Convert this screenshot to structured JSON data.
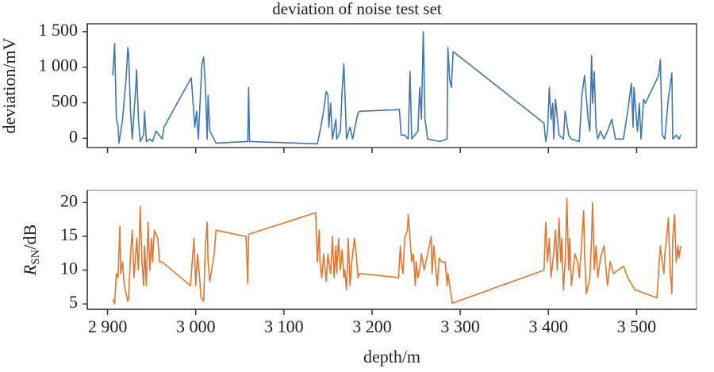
{
  "chart_data": [
    {
      "type": "line",
      "title": "deviation of noise test set",
      "y_label": "deviation/mV",
      "color": "#3f76b0",
      "xlim": [
        2877,
        3568
      ],
      "xticks": [
        {
          "value": 2900,
          "label": "2 900"
        },
        {
          "value": 3000,
          "label": "3 000"
        },
        {
          "value": 3100,
          "label": "3 100"
        },
        {
          "value": 3200,
          "label": "3 200"
        },
        {
          "value": 3300,
          "label": "3 300"
        },
        {
          "value": 3400,
          "label": "3 400"
        },
        {
          "value": 3500,
          "label": "3 500"
        }
      ],
      "ylim": [
        -130,
        1610
      ],
      "yticks": [
        {
          "value": 1500,
          "label": "1 500"
        },
        {
          "value": 1000,
          "label": "1 000"
        },
        500,
        0
      ],
      "x": [
        2906,
        2908,
        2910,
        2912,
        2913,
        2917,
        2921,
        2923,
        2924,
        2926,
        2928,
        2932,
        2933,
        2935,
        2937,
        2941,
        2942,
        2944,
        2948,
        2951,
        2955,
        2962,
        2964,
        2995,
        2999,
        3001,
        3003,
        3007,
        3009,
        3011,
        3013,
        3014,
        3016,
        3023,
        3059,
        3060,
        3061,
        3138,
        3141,
        3145,
        3148,
        3150,
        3151,
        3153,
        3155,
        3159,
        3160,
        3164,
        3166,
        3168,
        3170,
        3171,
        3175,
        3178,
        3184,
        3186,
        3231,
        3233,
        3237,
        3241,
        3243,
        3245,
        3252,
        3254,
        3256,
        3258,
        3260,
        3263,
        3277,
        3285,
        3286,
        3288,
        3290,
        3292,
        3395,
        3397,
        3399,
        3401,
        3403,
        3405,
        3406,
        3408,
        3412,
        3417,
        3419,
        3423,
        3426,
        3435,
        3438,
        3441,
        3445,
        3447,
        3449,
        3450,
        3452,
        3454,
        3456,
        3459,
        3463,
        3467,
        3472,
        3476,
        3485,
        3490,
        3494,
        3496,
        3497,
        3501,
        3503,
        3505,
        3508,
        3510,
        3525,
        3527,
        3529,
        3532,
        3536,
        3540,
        3541,
        3545,
        3548,
        3550
      ],
      "values": [
        884,
        1332,
        269,
        157,
        -67,
        269,
        828,
        1276,
        1164,
        380,
        -11,
        716,
        962,
        269,
        -45,
        45,
        380,
        -45,
        -11,
        -45,
        101,
        -11,
        157,
        850,
        157,
        380,
        -11,
        1052,
        1141,
        716,
        -11,
        604,
        101,
        -67,
        -45,
        716,
        -45,
        -78,
        101,
        380,
        660,
        604,
        157,
        492,
        -11,
        269,
        -11,
        101,
        660,
        1052,
        380,
        -11,
        157,
        -11,
        358,
        380,
        403,
        45,
        45,
        -11,
        940,
        -11,
        101,
        716,
        269,
        1500,
        269,
        -11,
        -45,
        -11,
        1276,
        828,
        716,
        1220,
        213,
        -45,
        101,
        716,
        269,
        492,
        -11,
        548,
        45,
        -11,
        380,
        45,
        -11,
        -45,
        604,
        884,
        269,
        101,
        1164,
        492,
        940,
        157,
        -11,
        101,
        -11,
        101,
        269,
        -11,
        -11,
        380,
        772,
        157,
        716,
        101,
        492,
        -11,
        548,
        492,
        884,
        1108,
        45,
        -11,
        548,
        918,
        -11,
        45,
        -11,
        45
      ]
    },
    {
      "type": "line",
      "x_label": "depth/m",
      "y_label": {
        "symbol": "R",
        "subscript": "SN",
        "unit": "/dB"
      },
      "color": "#e5752c",
      "xlim": [
        2877,
        3568
      ],
      "xticks": [
        {
          "value": 2900,
          "label": "2 900"
        },
        {
          "value": 3000,
          "label": "3 000"
        },
        {
          "value": 3100,
          "label": "3 100"
        },
        {
          "value": 3200,
          "label": "3 200"
        },
        {
          "value": 3300,
          "label": "3 300"
        },
        {
          "value": 3400,
          "label": "3 400"
        },
        {
          "value": 3500,
          "label": "3 500"
        }
      ],
      "ylim": [
        4.2,
        21.8
      ],
      "yticks": [
        5,
        10,
        15,
        20
      ],
      "x": [
        2906,
        2908,
        2910,
        2912,
        2914,
        2915,
        2917,
        2919,
        2923,
        2924,
        2926,
        2928,
        2930,
        2932,
        2933,
        2935,
        2937,
        2939,
        2941,
        2942,
        2944,
        2946,
        2948,
        2950,
        2951,
        2953,
        2957,
        2959,
        2962,
        2994,
        2996,
        2998,
        3000,
        3002,
        3004,
        3006,
        3009,
        3011,
        3013,
        3014,
        3016,
        3018,
        3021,
        3023,
        3057,
        3059,
        3060,
        3136,
        3138,
        3140,
        3141,
        3143,
        3145,
        3148,
        3150,
        3151,
        3153,
        3155,
        3157,
        3159,
        3160,
        3162,
        3164,
        3166,
        3168,
        3169,
        3171,
        3173,
        3175,
        3177,
        3180,
        3182,
        3184,
        3186,
        3230,
        3232,
        3233,
        3235,
        3237,
        3240,
        3241,
        3243,
        3245,
        3247,
        3249,
        3250,
        3252,
        3254,
        3256,
        3259,
        3263,
        3267,
        3268,
        3270,
        3274,
        3276,
        3279,
        3283,
        3285,
        3286,
        3291,
        3395,
        3397,
        3399,
        3401,
        3403,
        3406,
        3408,
        3410,
        3412,
        3414,
        3415,
        3417,
        3419,
        3421,
        3423,
        3424,
        3426,
        3430,
        3433,
        3435,
        3438,
        3440,
        3441,
        3443,
        3447,
        3449,
        3450,
        3452,
        3454,
        3456,
        3459,
        3463,
        3467,
        3470,
        3474,
        3479,
        3485,
        3490,
        3498,
        3523,
        3527,
        3529,
        3531,
        3532,
        3534,
        3536,
        3538,
        3540,
        3541,
        3543,
        3545,
        3547,
        3548,
        3550
      ],
      "values": [
        5.7,
        5.0,
        9.5,
        8.9,
        16.5,
        9.5,
        11.2,
        7.7,
        5.4,
        5.9,
        12.4,
        15.9,
        8.9,
        12.4,
        14.7,
        10.0,
        19.4,
        11.2,
        7.7,
        13.6,
        7.7,
        17.1,
        10.0,
        14.7,
        11.2,
        15.9,
        14.7,
        11.2,
        11.2,
        7.7,
        11.2,
        14.7,
        7.7,
        12.4,
        9.5,
        5.9,
        5.4,
        13.6,
        17.1,
        11.2,
        8.3,
        10.0,
        12.4,
        15.9,
        15.0,
        8.0,
        15.3,
        18.5,
        11.2,
        15.9,
        11.2,
        8.9,
        12.4,
        8.3,
        12.4,
        11.2,
        9.5,
        15.0,
        8.9,
        13.6,
        9.5,
        14.7,
        10.0,
        13.0,
        8.9,
        10.0,
        7.1,
        14.7,
        7.7,
        11.2,
        14.7,
        12.4,
        8.9,
        9.5,
        8.9,
        13.6,
        11.2,
        9.5,
        14.7,
        15.9,
        18.2,
        14.7,
        11.2,
        12.4,
        7.7,
        11.2,
        8.9,
        10.0,
        12.4,
        10.0,
        12.4,
        15.0,
        9.5,
        13.6,
        7.7,
        11.8,
        11.2,
        11.2,
        7.7,
        9.5,
        5.1,
        10.0,
        17.1,
        11.2,
        14.7,
        8.9,
        12.4,
        15.9,
        10.0,
        17.7,
        11.2,
        14.7,
        7.1,
        11.2,
        20.6,
        10.0,
        14.7,
        7.7,
        12.4,
        11.2,
        8.9,
        14.7,
        18.8,
        12.4,
        6.5,
        8.9,
        14.7,
        20.0,
        10.0,
        13.6,
        8.9,
        11.8,
        13.6,
        7.7,
        11.2,
        9.5,
        10.0,
        10.6,
        8.9,
        7.1,
        5.9,
        13.6,
        11.2,
        9.5,
        12.4,
        14.7,
        17.7,
        10.0,
        6.5,
        14.7,
        18.2,
        11.2,
        13.6,
        11.8,
        13.6
      ]
    }
  ]
}
